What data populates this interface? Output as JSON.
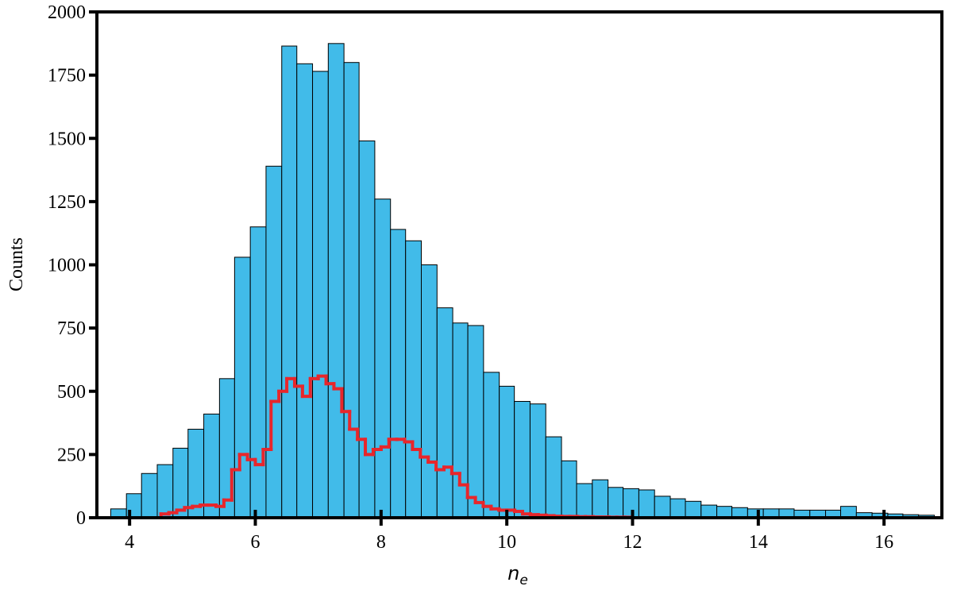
{
  "chart_data": {
    "type": "histogram",
    "xlabel": "n",
    "xlabel_subscript": "e",
    "ylabel": "Counts",
    "xlim": [
      3.48,
      16.92
    ],
    "ylim": [
      0,
      2000
    ],
    "xticks": [
      4,
      6,
      8,
      10,
      12,
      14,
      16
    ],
    "yticks": [
      0,
      250,
      500,
      750,
      1000,
      1250,
      1500,
      1750,
      2000
    ],
    "series": [
      {
        "style": "bars",
        "color": "#41bbe9",
        "bins": [
          3.7,
          3.95,
          4.19,
          4.44,
          4.69,
          4.93,
          5.18,
          5.43,
          5.67,
          5.92,
          6.17,
          6.42,
          6.66,
          6.91,
          7.16,
          7.41,
          7.65,
          7.9,
          8.15,
          8.39,
          8.64,
          8.89,
          9.14,
          9.38,
          9.63,
          9.88,
          10.12,
          10.37,
          10.62,
          10.87,
          11.11,
          11.36,
          11.61,
          11.85,
          12.1,
          12.35,
          12.6,
          12.84,
          13.09,
          13.34,
          13.58,
          13.83,
          14.08,
          14.33,
          14.57,
          14.82,
          15.07,
          15.31,
          15.56,
          15.81,
          16.06,
          16.3,
          16.55,
          16.8
        ],
        "values": [
          35,
          95,
          175,
          210,
          275,
          350,
          410,
          550,
          1030,
          1150,
          1390,
          1865,
          1795,
          1765,
          1875,
          1800,
          1490,
          1260,
          1140,
          1095,
          1000,
          830,
          770,
          760,
          575,
          520,
          460,
          450,
          320,
          225,
          135,
          150,
          120,
          115,
          110,
          85,
          75,
          65,
          50,
          45,
          40,
          35,
          35,
          35,
          30,
          30,
          30,
          45,
          20,
          18,
          15,
          12,
          10
        ]
      },
      {
        "style": "step",
        "color": "#e8262b",
        "bins": [
          4.5,
          4.625,
          4.75,
          4.875,
          5.0,
          5.125,
          5.25,
          5.375,
          5.5,
          5.625,
          5.75,
          5.875,
          6.0,
          6.125,
          6.25,
          6.375,
          6.5,
          6.625,
          6.75,
          6.875,
          7.0,
          7.125,
          7.25,
          7.375,
          7.5,
          7.625,
          7.75,
          7.875,
          8.0,
          8.125,
          8.25,
          8.375,
          8.5,
          8.625,
          8.75,
          8.875,
          9.0,
          9.125,
          9.25,
          9.375,
          9.5,
          9.625,
          9.75,
          9.875,
          10.0,
          10.125,
          10.25,
          10.375,
          10.5,
          10.625,
          10.75,
          10.875,
          11.0,
          11.125,
          11.25,
          11.375,
          11.5,
          11.625,
          11.75,
          11.875,
          12.0
        ],
        "values": [
          15,
          20,
          30,
          40,
          45,
          50,
          50,
          45,
          70,
          190,
          250,
          230,
          210,
          270,
          460,
          500,
          550,
          520,
          480,
          550,
          560,
          530,
          510,
          420,
          350,
          310,
          250,
          270,
          280,
          310,
          310,
          300,
          270,
          240,
          220,
          190,
          200,
          175,
          130,
          80,
          60,
          45,
          35,
          30,
          30,
          25,
          15,
          12,
          10,
          8,
          6,
          5,
          5,
          4,
          4,
          3,
          3,
          2,
          2,
          2
        ]
      }
    ]
  }
}
